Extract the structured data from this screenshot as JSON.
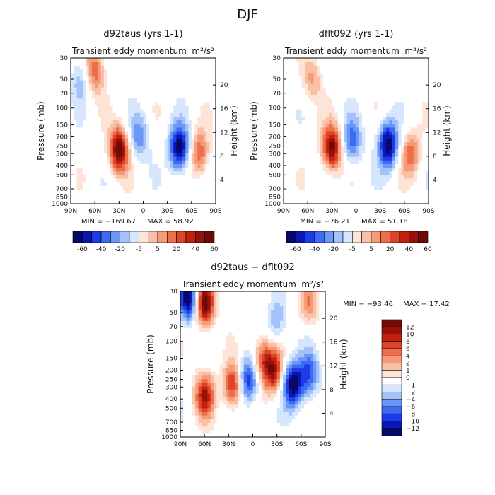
{
  "figure": {
    "title": "DJF"
  },
  "colors": {
    "neg": [
      "#08086b",
      "#0b16b5",
      "#1e3ce6",
      "#3d6bf2",
      "#6b97f7",
      "#a3c2fa",
      "#d6e6fc"
    ],
    "neutral": "#ffffff",
    "pos": [
      "#fde4d6",
      "#f9c0a6",
      "#f59b77",
      "#ee6e4c",
      "#df4429",
      "#c4200f",
      "#95110a",
      "#700a07"
    ]
  },
  "chart_data": [
    {
      "type": "heatmap",
      "id": "panel1",
      "title": "d92taus (yrs 1-1)",
      "subtitle_left": "Transient eddy momentum",
      "units": "m²/s²",
      "xlabel": "",
      "ylabel": "Pressure (mb)",
      "ylabel_right": "Height (km)",
      "x_ticks": [
        "90N",
        "60N",
        "30N",
        "0",
        "30S",
        "60S",
        "90S"
      ],
      "y_ticks": [
        "30",
        "50",
        "70",
        "100",
        "150",
        "200",
        "250",
        "300",
        "400",
        "500",
        "700",
        "850",
        "1000"
      ],
      "y_ticks_right": [
        "20",
        "16",
        "12",
        "8",
        "4"
      ],
      "min_label": "MIN = −169.67",
      "max_label": "MAX = 58.92",
      "colorbar": [
        "-60",
        "-40",
        "-20",
        "-5",
        "5",
        "20",
        "40",
        "60"
      ],
      "features": [
        {
          "lat": 30,
          "p": 270,
          "sign": 1,
          "amp": 1.0
        },
        {
          "lat": -45,
          "p": 260,
          "sign": -1,
          "amp": 1.0
        },
        {
          "lat": 5,
          "p": 200,
          "sign": -1,
          "amp": 0.45
        },
        {
          "lat": -70,
          "p": 300,
          "sign": 1,
          "amp": 0.55
        },
        {
          "lat": 60,
          "p": 40,
          "sign": 1,
          "amp": 0.55
        },
        {
          "lat": 78,
          "p": 50,
          "sign": -1,
          "amp": 0.3
        }
      ]
    },
    {
      "type": "heatmap",
      "id": "panel2",
      "title": "dflt092 (yrs 1-1)",
      "subtitle_left": "Transient eddy momentum",
      "units": "m²/s²",
      "xlabel": "",
      "ylabel": "Pressure (mb)",
      "ylabel_right": "Height (km)",
      "x_ticks": [
        "90N",
        "60N",
        "30N",
        "0",
        "30S",
        "60S",
        "90S"
      ],
      "y_ticks": [
        "30",
        "50",
        "70",
        "100",
        "150",
        "200",
        "250",
        "300",
        "400",
        "500",
        "700",
        "850",
        "1000"
      ],
      "y_ticks_right": [
        "20",
        "16",
        "12",
        "8",
        "4"
      ],
      "min_label": "MIN = −76.21",
      "max_label": "MAX = 51.18",
      "colorbar": [
        "-60",
        "-40",
        "-20",
        "-5",
        "5",
        "20",
        "40",
        "60"
      ],
      "features": [
        {
          "lat": 30,
          "p": 260,
          "sign": 1,
          "amp": 0.95
        },
        {
          "lat": -40,
          "p": 240,
          "sign": -1,
          "amp": 1.0
        },
        {
          "lat": 5,
          "p": 220,
          "sign": -1,
          "amp": 0.55
        },
        {
          "lat": -68,
          "p": 300,
          "sign": 1,
          "amp": 0.5
        },
        {
          "lat": 55,
          "p": 50,
          "sign": 1,
          "amp": 0.35
        }
      ]
    },
    {
      "type": "heatmap",
      "id": "panel3",
      "title": "d92taus − dflt092",
      "subtitle_left": "Transient eddy momentum",
      "units": "m²/s²",
      "xlabel": "",
      "ylabel": "Pressure (mb)",
      "ylabel_right": "Height (km)",
      "x_ticks": [
        "90N",
        "60N",
        "30N",
        "0",
        "30S",
        "60S",
        "90S"
      ],
      "y_ticks": [
        "30",
        "50",
        "70",
        "100",
        "150",
        "200",
        "250",
        "300",
        "400",
        "500",
        "700",
        "850",
        "1000"
      ],
      "y_ticks_right": [
        "20",
        "16",
        "12",
        "8",
        "4"
      ],
      "min_label": "MIN = −93.46",
      "max_label": "MAX =  17.42",
      "colorbar": [
        "12",
        "10",
        "8",
        "6",
        "4",
        "2",
        "1",
        "0",
        "−1",
        "−2",
        "−4",
        "−6",
        "−8",
        "−10",
        "−12"
      ],
      "features": [
        {
          "lat": 80,
          "p": 35,
          "sign": -1,
          "amp": 1.0
        },
        {
          "lat": 60,
          "p": 40,
          "sign": 1,
          "amp": 1.0
        },
        {
          "lat": 60,
          "p": 360,
          "sign": 1,
          "amp": 0.75
        },
        {
          "lat": 25,
          "p": 290,
          "sign": 1,
          "amp": 0.7
        },
        {
          "lat": 5,
          "p": 250,
          "sign": -1,
          "amp": 0.75
        },
        {
          "lat": -10,
          "p": 150,
          "sign": 1,
          "amp": 0.55
        },
        {
          "lat": -25,
          "p": 200,
          "sign": 1,
          "amp": 0.8
        },
        {
          "lat": -50,
          "p": 280,
          "sign": -1,
          "amp": 1.0
        },
        {
          "lat": -70,
          "p": 220,
          "sign": -1,
          "amp": 0.6
        },
        {
          "lat": -30,
          "p": 60,
          "sign": -1,
          "amp": 0.35
        },
        {
          "lat": -70,
          "p": 40,
          "sign": 1,
          "amp": 0.4
        }
      ]
    }
  ]
}
